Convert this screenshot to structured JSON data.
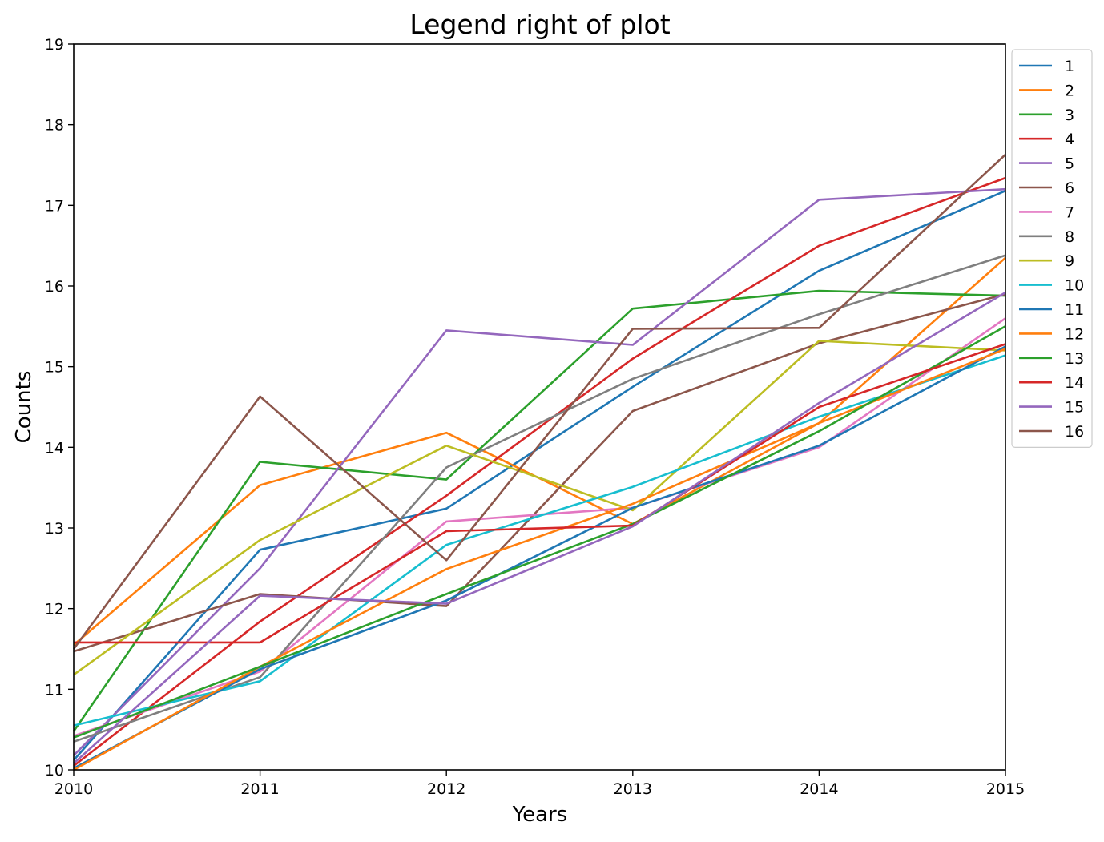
{
  "chart_data": {
    "type": "line",
    "title": "Legend right of plot",
    "xlabel": "Years",
    "ylabel": "Counts",
    "x": [
      2010,
      2011,
      2012,
      2013,
      2014,
      2015
    ],
    "xlim": [
      2010,
      2015
    ],
    "ylim": [
      10,
      19
    ],
    "xticks": [
      "2010",
      "2011",
      "2012",
      "2013",
      "2014",
      "2015"
    ],
    "yticks": [
      "10",
      "11",
      "12",
      "13",
      "14",
      "15",
      "16",
      "17",
      "18",
      "19"
    ],
    "grid": false,
    "legend_position": "outside-right-top",
    "series": [
      {
        "name": "1",
        "color": "#1f77b4",
        "values": [
          10.12,
          12.73,
          13.24,
          14.75,
          16.19,
          17.18
        ]
      },
      {
        "name": "2",
        "color": "#ff7f0e",
        "values": [
          11.55,
          13.53,
          14.18,
          13.05,
          14.3,
          16.35
        ]
      },
      {
        "name": "3",
        "color": "#2ca02c",
        "values": [
          10.48,
          13.82,
          13.6,
          15.72,
          15.94,
          15.88
        ]
      },
      {
        "name": "4",
        "color": "#d62728",
        "values": [
          10.05,
          11.84,
          13.4,
          15.1,
          16.5,
          17.34
        ]
      },
      {
        "name": "5",
        "color": "#9467bd",
        "values": [
          10.18,
          12.5,
          15.45,
          15.27,
          17.07,
          17.2
        ]
      },
      {
        "name": "6",
        "color": "#8c564b",
        "values": [
          11.47,
          12.18,
          12.03,
          14.45,
          15.29,
          15.9
        ]
      },
      {
        "name": "7",
        "color": "#e377c2",
        "values": [
          10.42,
          11.22,
          13.08,
          13.25,
          14.0,
          15.6
        ]
      },
      {
        "name": "8",
        "color": "#7f7f7f",
        "values": [
          10.35,
          11.15,
          13.75,
          14.85,
          15.65,
          16.38
        ]
      },
      {
        "name": "9",
        "color": "#bcbd22",
        "values": [
          11.18,
          12.85,
          14.02,
          13.22,
          15.32,
          15.2
        ]
      },
      {
        "name": "10",
        "color": "#17becf",
        "values": [
          10.55,
          11.1,
          12.79,
          13.51,
          14.38,
          15.14
        ]
      },
      {
        "name": "11",
        "color": "#1f77b4",
        "values": [
          10.02,
          11.25,
          12.1,
          13.25,
          14.02,
          15.25
        ]
      },
      {
        "name": "12",
        "color": "#ff7f0e",
        "values": [
          10.0,
          11.28,
          12.49,
          13.3,
          14.3,
          15.22
        ]
      },
      {
        "name": "13",
        "color": "#2ca02c",
        "values": [
          10.4,
          11.28,
          12.18,
          13.05,
          14.2,
          15.5
        ]
      },
      {
        "name": "14",
        "color": "#d62728",
        "values": [
          11.58,
          11.58,
          12.96,
          13.03,
          14.5,
          15.28
        ]
      },
      {
        "name": "15",
        "color": "#9467bd",
        "values": [
          10.08,
          12.16,
          12.06,
          13.02,
          14.55,
          15.92
        ]
      },
      {
        "name": "16",
        "color": "#8c564b",
        "values": [
          11.5,
          14.63,
          12.6,
          15.47,
          15.48,
          17.63
        ]
      }
    ]
  }
}
